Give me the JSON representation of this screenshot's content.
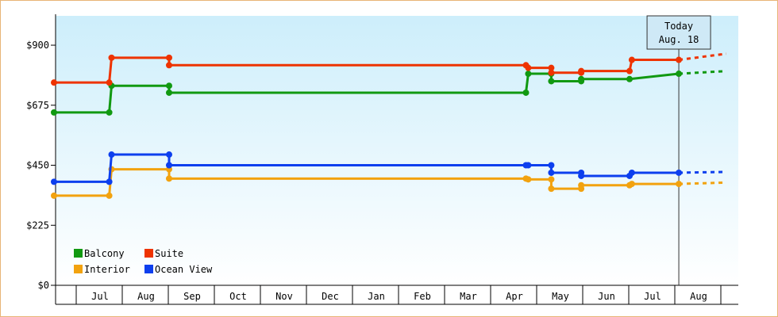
{
  "chart_data": {
    "type": "line",
    "step": true,
    "title": "",
    "xlabel": "",
    "ylabel": "",
    "ylim": [
      0,
      1010
    ],
    "yticks": [
      0,
      225,
      450,
      675,
      900
    ],
    "ytick_labels": [
      "$0",
      "$225",
      "$450",
      "$675",
      "$900"
    ],
    "x_unit": "months since start of June",
    "xlim": [
      0,
      14.6
    ],
    "month_labels": [
      "Jul",
      "Aug",
      "Sep",
      "Oct",
      "Nov",
      "Dec",
      "Jan",
      "Feb",
      "Mar",
      "Apr",
      "May",
      "Jun",
      "Jul",
      "Aug"
    ],
    "today": {
      "line1": "Today",
      "line2": "Aug. 18",
      "x": 13.57
    },
    "grid": false,
    "legend_position": "bottom-left",
    "series": [
      {
        "name": "Balcony",
        "color": "#119911",
        "points": [
          [
            0,
            648
          ],
          [
            1.2,
            648
          ],
          [
            1.25,
            748
          ],
          [
            2.5,
            748
          ],
          [
            2.5,
            722
          ],
          [
            10.25,
            722
          ],
          [
            10.3,
            793
          ],
          [
            10.8,
            793
          ],
          [
            10.8,
            765
          ],
          [
            11.45,
            765
          ],
          [
            11.45,
            773
          ],
          [
            12.5,
            773
          ],
          [
            13.57,
            793
          ]
        ],
        "forecast": [
          [
            13.57,
            793
          ],
          [
            14.6,
            803
          ]
        ]
      },
      {
        "name": "Suite",
        "color": "#ee3300",
        "points": [
          [
            0,
            760
          ],
          [
            1.2,
            760
          ],
          [
            1.25,
            853
          ],
          [
            2.5,
            853
          ],
          [
            2.5,
            825
          ],
          [
            10.25,
            825
          ],
          [
            10.3,
            815
          ],
          [
            10.8,
            815
          ],
          [
            10.8,
            797
          ],
          [
            11.45,
            797
          ],
          [
            11.45,
            803
          ],
          [
            12.5,
            803
          ],
          [
            12.55,
            845
          ],
          [
            13.57,
            845
          ]
        ],
        "forecast": [
          [
            13.57,
            845
          ],
          [
            14.6,
            868
          ]
        ]
      },
      {
        "name": "Interior",
        "color": "#f2a20f",
        "points": [
          [
            0,
            336
          ],
          [
            1.2,
            336
          ],
          [
            1.25,
            435
          ],
          [
            2.5,
            435
          ],
          [
            2.5,
            400
          ],
          [
            10.25,
            400
          ],
          [
            10.3,
            397
          ],
          [
            10.8,
            397
          ],
          [
            10.8,
            362
          ],
          [
            11.45,
            362
          ],
          [
            11.45,
            375
          ],
          [
            12.5,
            375
          ],
          [
            12.55,
            380
          ],
          [
            13.57,
            380
          ]
        ],
        "forecast": [
          [
            13.57,
            380
          ],
          [
            14.6,
            385
          ]
        ]
      },
      {
        "name": "Ocean View",
        "color": "#0d3fee",
        "points": [
          [
            0,
            388
          ],
          [
            1.2,
            388
          ],
          [
            1.25,
            490
          ],
          [
            2.5,
            490
          ],
          [
            2.5,
            450
          ],
          [
            10.25,
            450
          ],
          [
            10.3,
            450
          ],
          [
            10.8,
            450
          ],
          [
            10.8,
            422
          ],
          [
            11.45,
            422
          ],
          [
            11.45,
            410
          ],
          [
            12.5,
            410
          ],
          [
            12.55,
            422
          ],
          [
            13.57,
            422
          ]
        ],
        "forecast": [
          [
            13.57,
            422
          ],
          [
            14.6,
            425
          ]
        ]
      }
    ],
    "legend": [
      {
        "label": "Balcony",
        "color": "#119911"
      },
      {
        "label": "Suite",
        "color": "#ee3300"
      },
      {
        "label": "Interior",
        "color": "#f2a20f"
      },
      {
        "label": "Ocean View",
        "color": "#0d3fee"
      }
    ]
  }
}
